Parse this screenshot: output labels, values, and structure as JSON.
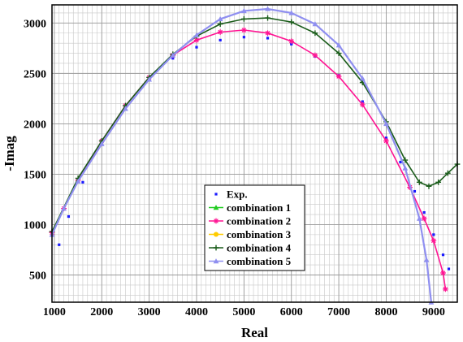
{
  "chart_data": {
    "type": "scatter",
    "xlabel": "Real",
    "ylabel": "-Imag",
    "xlim": [
      950,
      9500
    ],
    "ylim": [
      230,
      3180
    ],
    "xticks": [
      1000,
      2000,
      3000,
      4000,
      5000,
      6000,
      7000,
      8000,
      9000
    ],
    "yticks": [
      500,
      1000,
      1500,
      2000,
      2500,
      3000
    ],
    "grid": true,
    "legend_position": "bottom-center",
    "series": [
      {
        "name": "Exp.",
        "color": "#1a1aff",
        "marker": "dot",
        "x": [
          1100,
          1300,
          1600,
          2000,
          2500,
          3000,
          3500,
          4000,
          4500,
          5000,
          5500,
          6000,
          6500,
          7000,
          7500,
          8000,
          8300,
          8600,
          8800,
          9000,
          9200,
          9320
        ],
        "y": [
          800,
          1080,
          1420,
          1800,
          2180,
          2460,
          2650,
          2760,
          2830,
          2860,
          2850,
          2790,
          2670,
          2480,
          2220,
          1860,
          1620,
          1330,
          1120,
          900,
          700,
          560
        ]
      },
      {
        "name": "combination 1",
        "color": "#22cc22",
        "marker": "triangle",
        "x": [],
        "y": []
      },
      {
        "name": "combination 2",
        "color": "#ff1493",
        "marker": "star",
        "x": [
          950,
          1200,
          1500,
          2000,
          2500,
          3000,
          3500,
          4000,
          4500,
          5000,
          5500,
          6000,
          6500,
          7000,
          7500,
          8000,
          8500,
          8800,
          9000,
          9200,
          9250
        ],
        "y": [
          920,
          1160,
          1440,
          1830,
          2180,
          2460,
          2680,
          2830,
          2910,
          2930,
          2900,
          2820,
          2680,
          2470,
          2190,
          1830,
          1370,
          1060,
          840,
          520,
          360
        ]
      },
      {
        "name": "combination 3",
        "color": "#ffcc00",
        "marker": "circle",
        "x": [],
        "y": []
      },
      {
        "name": "combination 4",
        "color": "#1a5c1a",
        "marker": "plus",
        "x": [
          950,
          1500,
          2000,
          2500,
          3000,
          3500,
          4000,
          4500,
          5000,
          5500,
          6000,
          6500,
          7000,
          7500,
          8000,
          8400,
          8700,
          8900,
          9100,
          9300,
          9500
        ],
        "y": [
          930,
          1460,
          1830,
          2180,
          2460,
          2690,
          2870,
          2990,
          3040,
          3050,
          3010,
          2900,
          2700,
          2410,
          2020,
          1640,
          1420,
          1380,
          1420,
          1510,
          1600
        ]
      },
      {
        "name": "combination 5",
        "color": "#8f8ff0",
        "marker": "triangle",
        "x": [
          950,
          1200,
          1500,
          2000,
          2500,
          3000,
          3500,
          4000,
          4500,
          5000,
          5500,
          6000,
          6500,
          7000,
          7500,
          8000,
          8400,
          8700,
          8850,
          8950
        ],
        "y": [
          900,
          1160,
          1430,
          1800,
          2150,
          2440,
          2680,
          2880,
          3040,
          3120,
          3140,
          3100,
          2990,
          2780,
          2450,
          2000,
          1560,
          1060,
          650,
          230
        ]
      }
    ]
  }
}
